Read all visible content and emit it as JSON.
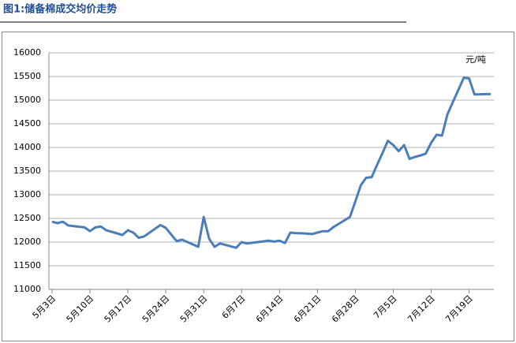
{
  "chart_data": {
    "type": "line",
    "title": "图1:储备棉成交均价走势",
    "annotation": "元/吨",
    "categories": [
      "5月3日",
      null,
      null,
      null,
      null,
      null,
      null,
      "5月10日",
      null,
      null,
      null,
      null,
      null,
      null,
      "5月17日",
      null,
      null,
      null,
      null,
      null,
      null,
      "5月24日",
      null,
      null,
      null,
      null,
      null,
      null,
      "5月31日",
      null,
      null,
      null,
      null,
      null,
      null,
      "6月7日",
      null,
      null,
      null,
      null,
      null,
      null,
      "6月14日",
      null,
      null,
      null,
      null,
      null,
      null,
      "6月21日",
      null,
      null,
      null,
      null,
      null,
      null,
      "6月28日",
      null,
      null,
      null,
      null,
      null,
      null,
      "7月5日",
      null,
      null,
      null,
      null,
      null,
      null,
      "7月12日",
      null,
      null,
      null,
      null,
      null,
      null,
      "7月19日",
      null,
      null,
      null,
      null
    ],
    "series": [
      {
        "name": "储备棉成交均价",
        "color": "#4a7ebb",
        "values": [
          12430,
          12400,
          12430,
          12350,
          12337,
          12323,
          12310,
          12230,
          12310,
          12330,
          12250,
          12217,
          12183,
          12150,
          12250,
          12200,
          12090,
          12120,
          12200,
          12280,
          12360,
          12300,
          12160,
          12020,
          12050,
          12000,
          11950,
          11900,
          12530,
          12070,
          11900,
          11970,
          11940,
          11910,
          11880,
          12000,
          11970,
          11985,
          12000,
          12015,
          12030,
          12010,
          12030,
          11980,
          12200,
          12190,
          12185,
          12178,
          12170,
          12200,
          12230,
          12230,
          12320,
          12390,
          12460,
          12530,
          12860,
          13200,
          13360,
          13370,
          13630,
          13880,
          14140,
          14050,
          13920,
          14050,
          13760,
          13800,
          13830,
          13870,
          14100,
          14270,
          14250,
          14700,
          14960,
          15210,
          15470,
          15460,
          15120,
          15123,
          15127,
          15130
        ]
      }
    ],
    "ylim": [
      11000,
      16000
    ],
    "yticks": [
      11000,
      11500,
      12000,
      12500,
      13000,
      13500,
      14000,
      14500,
      15000,
      15500,
      16000
    ],
    "grid": true
  }
}
